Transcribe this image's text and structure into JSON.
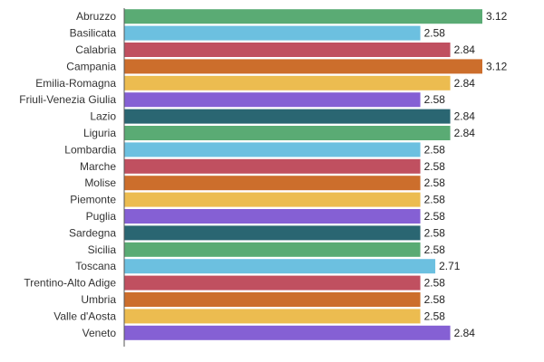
{
  "chart_data": {
    "type": "bar",
    "orientation": "horizontal",
    "categories": [
      "Abruzzo",
      "Basilicata",
      "Calabria",
      "Campania",
      "Emilia-Romagna",
      "Friuli-Venezia Giulia",
      "Lazio",
      "Liguria",
      "Lombardia",
      "Marche",
      "Molise",
      "Piemonte",
      "Puglia",
      "Sardegna",
      "Sicilia",
      "Toscana",
      "Trentino-Alto Adige",
      "Umbria",
      "Valle d'Aosta",
      "Veneto"
    ],
    "values": [
      3.12,
      2.58,
      2.84,
      3.12,
      2.84,
      2.58,
      2.84,
      2.84,
      2.58,
      2.58,
      2.58,
      2.58,
      2.58,
      2.58,
      2.58,
      2.71,
      2.58,
      2.58,
      2.58,
      2.84
    ],
    "value_labels": [
      "3.12",
      "2.58",
      "2.84",
      "3.12",
      "2.84",
      "2.58",
      "2.84",
      "2.84",
      "2.58",
      "2.58",
      "2.58",
      "2.58",
      "2.58",
      "2.58",
      "2.58",
      "2.71",
      "2.58",
      "2.58",
      "2.58",
      "2.84"
    ],
    "colors": [
      "#5aab74",
      "#6cc0e0",
      "#c05060",
      "#cc6e2c",
      "#ecbc50",
      "#8560d4",
      "#2a6672",
      "#5aab74",
      "#6cc0e0",
      "#c05060",
      "#cc6e2c",
      "#ecbc50",
      "#8560d4",
      "#2a6672",
      "#5aab74",
      "#6cc0e0",
      "#c05060",
      "#cc6e2c",
      "#ecbc50",
      "#8560d4"
    ],
    "title": "",
    "xlabel": "",
    "ylabel": "",
    "xlim": [
      0,
      3.12
    ],
    "grid": false,
    "legend": "none"
  }
}
